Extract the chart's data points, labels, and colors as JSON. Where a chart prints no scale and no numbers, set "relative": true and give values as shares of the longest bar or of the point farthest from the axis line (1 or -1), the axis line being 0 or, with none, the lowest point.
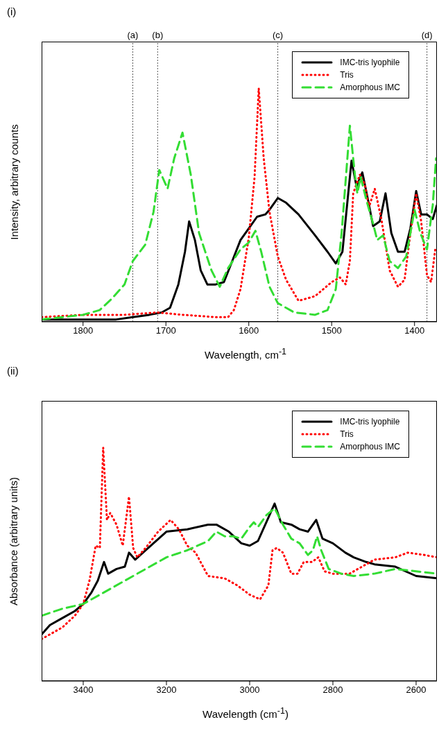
{
  "chart_data": [
    {
      "type": "line",
      "title": "(i)",
      "xlabel": "Wavelength, cm$^{-1}$",
      "ylabel": "Intensity, arbitrary counts",
      "relative": true,
      "xlim": [
        1850,
        1373
      ],
      "xticks": [
        1800,
        1700,
        1600,
        1500,
        1400
      ],
      "legend": "top right",
      "grid": false,
      "ref_lines": [
        {
          "axis": "x",
          "value": 1740,
          "label": "(a)",
          "color": "#555555",
          "line_style": "dotted"
        },
        {
          "axis": "x",
          "value": 1710,
          "label": "(b)",
          "color": "#555555",
          "line_style": "dotted"
        },
        {
          "axis": "x",
          "value": 1565,
          "label": "(c)",
          "color": "#555555",
          "line_style": "dotted"
        },
        {
          "axis": "x",
          "value": 1385,
          "label": "(d)",
          "color": "#555555",
          "line_style": "dotted"
        }
      ],
      "series": [
        {
          "name": "IMC-tris lyophile",
          "color": "#000000",
          "line_style": "solid",
          "x": [
            1850,
            1800,
            1760,
            1740,
            1720,
            1705,
            1695,
            1685,
            1677,
            1672,
            1665,
            1658,
            1650,
            1640,
            1630,
            1620,
            1610,
            1600,
            1590,
            1580,
            1575,
            1565,
            1555,
            1540,
            1520,
            1505,
            1495,
            1487,
            1480,
            1476,
            1470,
            1463,
            1456,
            1450,
            1442,
            1435,
            1428,
            1420,
            1412,
            1405,
            1398,
            1392,
            1385,
            1378,
            1373
          ],
          "values": [
            0.01,
            0.01,
            0.01,
            0.02,
            0.03,
            0.04,
            0.06,
            0.16,
            0.3,
            0.43,
            0.35,
            0.22,
            0.16,
            0.16,
            0.17,
            0.26,
            0.35,
            0.4,
            0.45,
            0.46,
            0.48,
            0.53,
            0.51,
            0.46,
            0.37,
            0.3,
            0.25,
            0.3,
            0.55,
            0.69,
            0.58,
            0.64,
            0.52,
            0.41,
            0.43,
            0.55,
            0.38,
            0.3,
            0.3,
            0.4,
            0.56,
            0.46,
            0.46,
            0.44,
            0.5
          ]
        },
        {
          "name": "Tris",
          "color": "#ff0000",
          "line_style": "dotted",
          "x": [
            1850,
            1800,
            1750,
            1710,
            1680,
            1640,
            1625,
            1618,
            1610,
            1600,
            1593,
            1588,
            1582,
            1575,
            1565,
            1555,
            1540,
            1520,
            1500,
            1490,
            1483,
            1478,
            1474,
            1466,
            1460,
            1455,
            1448,
            1440,
            1430,
            1420,
            1412,
            1405,
            1398,
            1392,
            1385,
            1380,
            1375
          ],
          "values": [
            0.02,
            0.03,
            0.03,
            0.04,
            0.03,
            0.02,
            0.02,
            0.05,
            0.14,
            0.36,
            0.62,
            1,
            0.7,
            0.47,
            0.28,
            0.18,
            0.09,
            0.11,
            0.17,
            0.19,
            0.16,
            0.26,
            0.55,
            0.63,
            0.59,
            0.49,
            0.57,
            0.44,
            0.22,
            0.15,
            0.18,
            0.38,
            0.55,
            0.43,
            0.2,
            0.17,
            0.31
          ]
        },
        {
          "name": "Amorphous IMC",
          "color": "#33dd33",
          "line_style": "dashed",
          "x": [
            1850,
            1800,
            1780,
            1765,
            1750,
            1740,
            1725,
            1715,
            1708,
            1698,
            1690,
            1680,
            1670,
            1660,
            1645,
            1635,
            1625,
            1610,
            1600,
            1592,
            1585,
            1575,
            1565,
            1545,
            1520,
            1505,
            1495,
            1488,
            1478,
            1472,
            1469,
            1465,
            1458,
            1450,
            1445,
            1438,
            1430,
            1420,
            1410,
            1400,
            1393,
            1385,
            1378,
            1374
          ],
          "values": [
            0.01,
            0.03,
            0.05,
            0.1,
            0.16,
            0.26,
            0.33,
            0.47,
            0.65,
            0.57,
            0.7,
            0.81,
            0.63,
            0.38,
            0.22,
            0.15,
            0.23,
            0.31,
            0.34,
            0.39,
            0.3,
            0.15,
            0.08,
            0.04,
            0.03,
            0.05,
            0.14,
            0.38,
            0.84,
            0.63,
            0.55,
            0.62,
            0.52,
            0.42,
            0.35,
            0.37,
            0.26,
            0.23,
            0.28,
            0.48,
            0.38,
            0.31,
            0.5,
            0.7
          ]
        }
      ]
    },
    {
      "type": "line",
      "title": "(ii)",
      "xlabel": "Wavelength (cm$^{-1}$)",
      "ylabel": "Absorbance (arbitrary units)",
      "relative": true,
      "xlim": [
        3500,
        2550
      ],
      "xticks": [
        3400,
        3200,
        3000,
        2800,
        2600
      ],
      "legend": "top right",
      "grid": false,
      "series": [
        {
          "name": "IMC-tris lyophile",
          "color": "#000000",
          "line_style": "solid",
          "x": [
            3500,
            3480,
            3450,
            3420,
            3400,
            3380,
            3365,
            3350,
            3340,
            3320,
            3300,
            3290,
            3275,
            3250,
            3200,
            3150,
            3100,
            3080,
            3050,
            3020,
            3000,
            2980,
            2960,
            2940,
            2925,
            2900,
            2880,
            2860,
            2840,
            2825,
            2800,
            2770,
            2750,
            2720,
            2700,
            2650,
            2600,
            2550
          ],
          "values": [
            0.2,
            0.24,
            0.27,
            0.3,
            0.33,
            0.38,
            0.43,
            0.51,
            0.46,
            0.48,
            0.49,
            0.55,
            0.52,
            0.56,
            0.64,
            0.65,
            0.67,
            0.67,
            0.64,
            0.59,
            0.58,
            0.6,
            0.68,
            0.76,
            0.68,
            0.67,
            0.65,
            0.64,
            0.69,
            0.61,
            0.59,
            0.55,
            0.53,
            0.51,
            0.5,
            0.49,
            0.45,
            0.44
          ]
        },
        {
          "name": "Tris",
          "color": "#ff0000",
          "line_style": "dotted",
          "x": [
            3500,
            3450,
            3420,
            3400,
            3385,
            3370,
            3360,
            3352,
            3343,
            3335,
            3320,
            3305,
            3290,
            3280,
            3270,
            3250,
            3220,
            3190,
            3170,
            3150,
            3130,
            3100,
            3060,
            3030,
            3000,
            2975,
            2955,
            2945,
            2935,
            2920,
            2900,
            2885,
            2870,
            2850,
            2835,
            2820,
            2800,
            2760,
            2740,
            2700,
            2650,
            2620,
            2580,
            2550
          ],
          "values": [
            0.18,
            0.23,
            0.28,
            0.33,
            0.43,
            0.58,
            0.57,
            1,
            0.69,
            0.72,
            0.67,
            0.58,
            0.79,
            0.57,
            0.53,
            0.57,
            0.64,
            0.69,
            0.65,
            0.58,
            0.55,
            0.45,
            0.44,
            0.41,
            0.37,
            0.35,
            0.41,
            0.56,
            0.57,
            0.55,
            0.46,
            0.46,
            0.51,
            0.51,
            0.53,
            0.47,
            0.46,
            0.46,
            0.48,
            0.52,
            0.53,
            0.55,
            0.54,
            0.53
          ]
        },
        {
          "name": "Amorphous IMC",
          "color": "#33dd33",
          "line_style": "dashed",
          "x": [
            3500,
            3450,
            3400,
            3350,
            3300,
            3250,
            3200,
            3150,
            3100,
            3080,
            3060,
            3040,
            3020,
            3000,
            2990,
            2980,
            2960,
            2940,
            2920,
            2900,
            2880,
            2860,
            2848,
            2838,
            2828,
            2810,
            2780,
            2750,
            2700,
            2650,
            2600,
            2550
          ],
          "values": [
            0.28,
            0.31,
            0.33,
            0.38,
            0.43,
            0.48,
            0.53,
            0.56,
            0.6,
            0.64,
            0.62,
            0.62,
            0.61,
            0.66,
            0.68,
            0.66,
            0.71,
            0.74,
            0.67,
            0.61,
            0.59,
            0.54,
            0.56,
            0.62,
            0.56,
            0.48,
            0.46,
            0.45,
            0.46,
            0.48,
            0.47,
            0.46
          ]
        }
      ]
    }
  ]
}
